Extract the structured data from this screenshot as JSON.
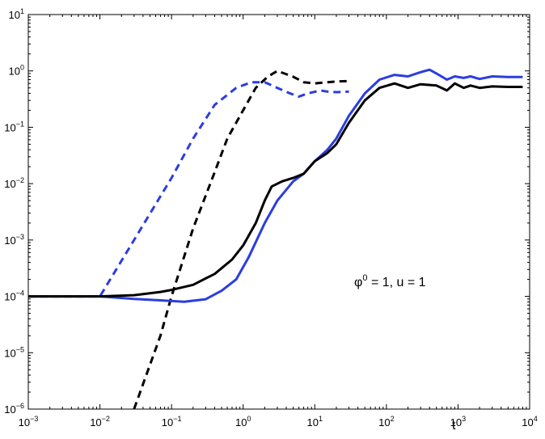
{
  "chart_data": {
    "type": "line",
    "title": "",
    "xlabel": "t",
    "ylabel": "",
    "x_scale": "log",
    "y_scale": "log",
    "xlim": [
      0.001,
      10000
    ],
    "ylim": [
      1e-06,
      10
    ],
    "grid": false,
    "x_tick_labels": [
      {
        "base": "10",
        "exp": "−3"
      },
      {
        "base": "10",
        "exp": "−2"
      },
      {
        "base": "10",
        "exp": "−1"
      },
      {
        "base": "10",
        "exp": "0"
      },
      {
        "base": "10",
        "exp": "1"
      },
      {
        "base": "10",
        "exp": "2"
      },
      {
        "base": "10",
        "exp": "3"
      },
      {
        "base": "10",
        "exp": "4"
      }
    ],
    "y_tick_labels": [
      {
        "base": "10",
        "exp": "−6"
      },
      {
        "base": "10",
        "exp": "−5"
      },
      {
        "base": "10",
        "exp": "−4"
      },
      {
        "base": "10",
        "exp": "−3"
      },
      {
        "base": "10",
        "exp": "−2"
      },
      {
        "base": "10",
        "exp": "−1"
      },
      {
        "base": "10",
        "exp": "0"
      },
      {
        "base": "10",
        "exp": "1"
      }
    ],
    "annotation": {
      "symbol": "φ",
      "sup": "0",
      "rest": " = 1,  u = 1"
    },
    "series": [
      {
        "color": "#2b3de0",
        "style": "dashed",
        "points": [
          [
            0.001,
            0.0001
          ],
          [
            0.01,
            0.0001
          ],
          [
            0.03,
            0.001
          ],
          [
            0.1,
            0.0126
          ],
          [
            0.2,
            0.063
          ],
          [
            0.4,
            0.25
          ],
          [
            0.8,
            0.5
          ],
          [
            1.3,
            0.63
          ],
          [
            2.0,
            0.63
          ],
          [
            3.0,
            0.5
          ],
          [
            4.5,
            0.4
          ],
          [
            6.0,
            0.35
          ],
          [
            8.0,
            0.4
          ],
          [
            12,
            0.45
          ],
          [
            15,
            0.43
          ],
          [
            20,
            0.42
          ],
          [
            30,
            0.43
          ]
        ]
      },
      {
        "color": "#000000",
        "style": "dashed",
        "points": [
          [
            0.03,
            1e-06
          ],
          [
            0.07,
            2e-05
          ],
          [
            0.1,
            0.0001
          ],
          [
            0.2,
            0.0016
          ],
          [
            0.4,
            0.016
          ],
          [
            0.6,
            0.063
          ],
          [
            1.0,
            0.2
          ],
          [
            1.5,
            0.5
          ],
          [
            2.2,
            0.79
          ],
          [
            3.0,
            1.0
          ],
          [
            5.0,
            0.79
          ],
          [
            7.0,
            0.63
          ],
          [
            10,
            0.6
          ],
          [
            15,
            0.63
          ],
          [
            20,
            0.65
          ],
          [
            30,
            0.66
          ]
        ]
      },
      {
        "color": "#2b3de0",
        "style": "solid",
        "points": [
          [
            0.001,
            0.0001
          ],
          [
            0.01,
            0.0001
          ],
          [
            0.03,
            9e-05
          ],
          [
            0.07,
            8.5e-05
          ],
          [
            0.15,
            8e-05
          ],
          [
            0.3,
            8.9e-05
          ],
          [
            0.5,
            0.000126
          ],
          [
            0.8,
            0.0002
          ],
          [
            1.2,
            0.0005
          ],
          [
            2.0,
            0.002
          ],
          [
            3.0,
            0.005
          ],
          [
            5.0,
            0.011
          ],
          [
            7.0,
            0.015
          ],
          [
            10,
            0.025
          ],
          [
            15,
            0.04
          ],
          [
            20,
            0.063
          ],
          [
            30,
            0.16
          ],
          [
            50,
            0.4
          ],
          [
            80,
            0.7
          ],
          [
            130,
            0.85
          ],
          [
            200,
            0.8
          ],
          [
            300,
            0.95
          ],
          [
            400,
            1.05
          ],
          [
            500,
            0.9
          ],
          [
            700,
            0.7
          ],
          [
            900,
            0.8
          ],
          [
            1200,
            0.75
          ],
          [
            1500,
            0.8
          ],
          [
            2000,
            0.72
          ],
          [
            3000,
            0.8
          ],
          [
            5000,
            0.78
          ],
          [
            8000,
            0.78
          ]
        ]
      },
      {
        "color": "#000000",
        "style": "solid",
        "points": [
          [
            0.001,
            0.0001
          ],
          [
            0.01,
            0.0001
          ],
          [
            0.03,
            0.000105
          ],
          [
            0.07,
            0.00012
          ],
          [
            0.1,
            0.00013
          ],
          [
            0.2,
            0.00016
          ],
          [
            0.4,
            0.00025
          ],
          [
            0.7,
            0.00045
          ],
          [
            1.0,
            0.0008
          ],
          [
            1.5,
            0.002
          ],
          [
            2.0,
            0.005
          ],
          [
            2.5,
            0.0089
          ],
          [
            3.5,
            0.011
          ],
          [
            5.0,
            0.0126
          ],
          [
            7.0,
            0.015
          ],
          [
            10,
            0.025
          ],
          [
            15,
            0.035
          ],
          [
            20,
            0.05
          ],
          [
            30,
            0.12
          ],
          [
            50,
            0.3
          ],
          [
            80,
            0.5
          ],
          [
            130,
            0.6
          ],
          [
            200,
            0.5
          ],
          [
            300,
            0.58
          ],
          [
            500,
            0.55
          ],
          [
            700,
            0.45
          ],
          [
            900,
            0.6
          ],
          [
            1200,
            0.5
          ],
          [
            1500,
            0.55
          ],
          [
            2000,
            0.5
          ],
          [
            3000,
            0.53
          ],
          [
            5000,
            0.52
          ],
          [
            8000,
            0.52
          ]
        ]
      }
    ]
  }
}
